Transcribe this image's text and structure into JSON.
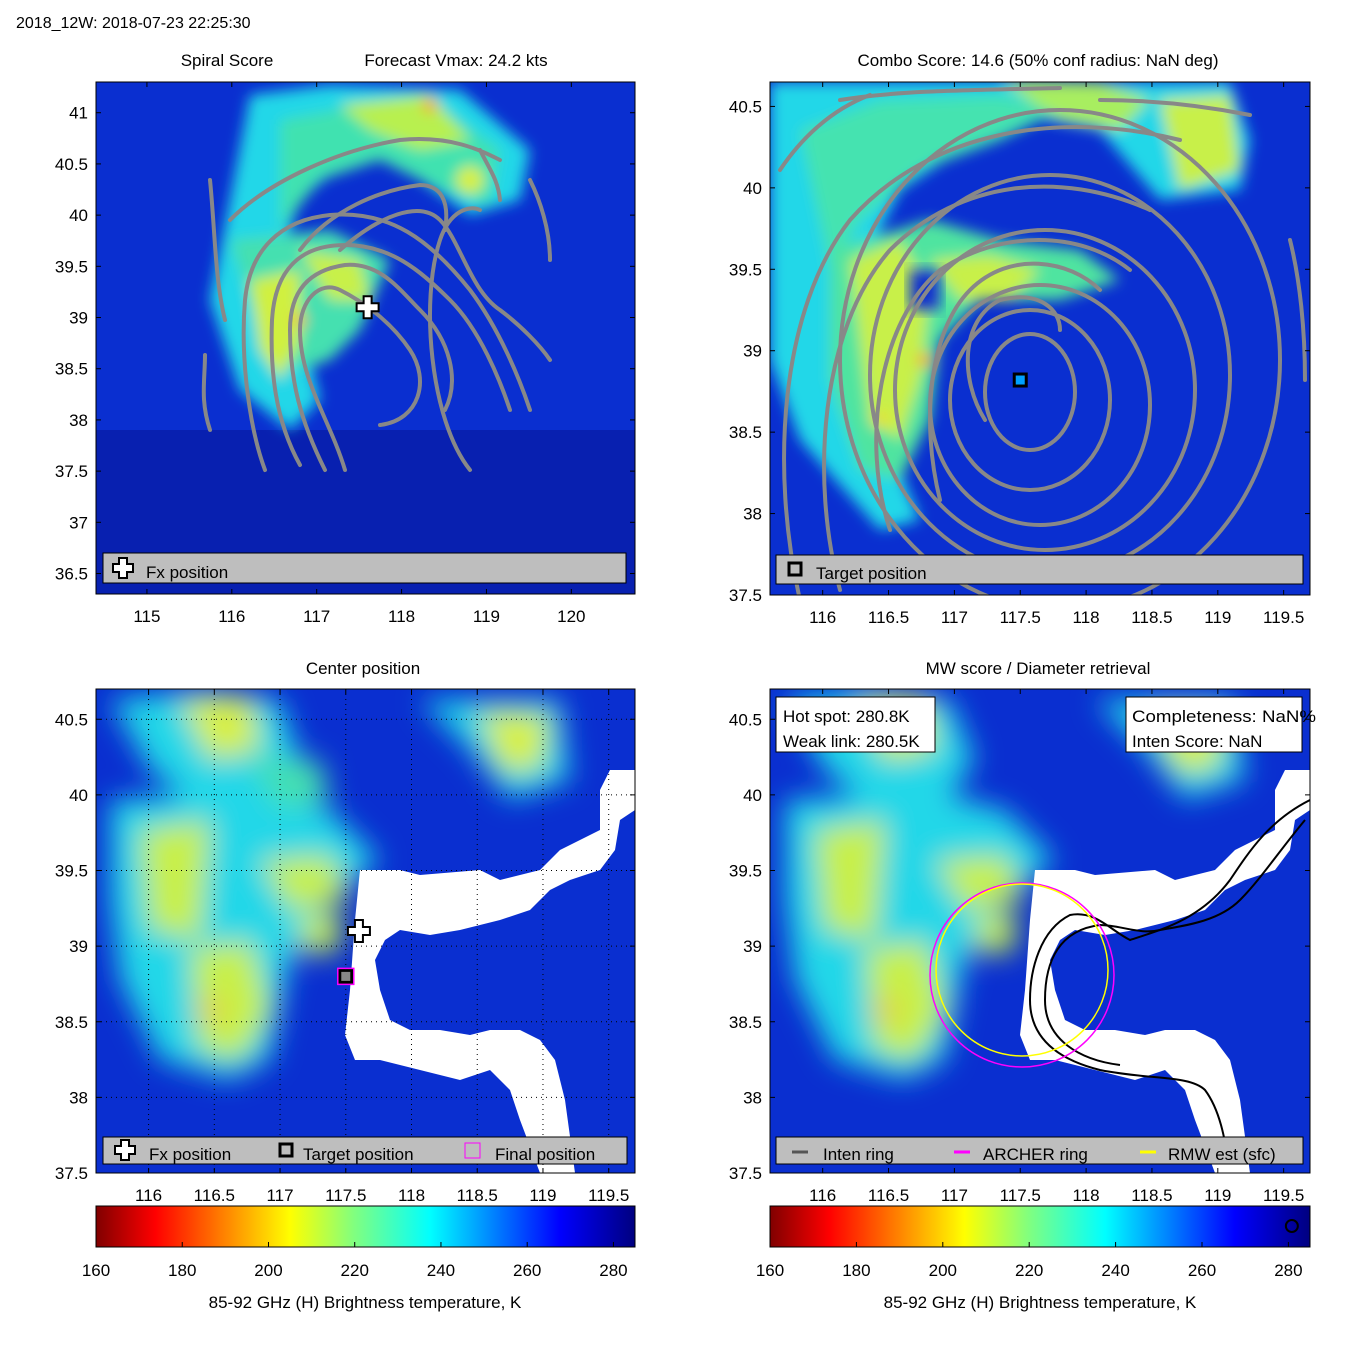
{
  "figure_title": "2018_12W: 2018-07-23 22:25:30",
  "colors": {
    "field_background": "#0a2fd0",
    "contour": "#888888",
    "legend_bg": "#bebebe",
    "archer_ring": "#ff00ff",
    "rmw_ring": "#ffff00",
    "inten_ring": "#000000"
  },
  "chart_data": [
    {
      "id": "spiral",
      "type": "heatmap",
      "title_left": "Spiral Score",
      "title_right": "Forecast Vmax: 24.2 kts",
      "xlim": [
        114.4,
        120.75
      ],
      "ylim": [
        36.3,
        41.3
      ],
      "xticks": [
        "115",
        "116",
        "117",
        "118",
        "119",
        "120"
      ],
      "yticks": [
        "36.5",
        "37",
        "37.5",
        "38",
        "38.5",
        "39",
        "39.5",
        "40",
        "40.5",
        "41"
      ],
      "markers": [
        {
          "kind": "fx-cross",
          "x": 117.6,
          "y": 39.1
        }
      ],
      "legend": [
        {
          "icon": "cross",
          "label": "Fx position"
        }
      ]
    },
    {
      "id": "combo",
      "type": "heatmap",
      "title": "Combo Score: 14.6  (50% conf radius: NaN deg)",
      "xlim": [
        115.6,
        119.7
      ],
      "ylim": [
        37.5,
        40.65
      ],
      "xticks": [
        "116",
        "116.5",
        "117",
        "117.5",
        "118",
        "118.5",
        "119",
        "119.5"
      ],
      "yticks": [
        "37.5",
        "38",
        "38.5",
        "39",
        "39.5",
        "40",
        "40.5"
      ],
      "markers": [
        {
          "kind": "target-square",
          "x": 117.5,
          "y": 38.82
        }
      ],
      "legend": [
        {
          "icon": "square",
          "label": "Target position"
        }
      ]
    },
    {
      "id": "center",
      "type": "heatmap",
      "title": "Center position",
      "xlim": [
        115.6,
        119.7
      ],
      "ylim": [
        37.5,
        40.7
      ],
      "xticks": [
        "116",
        "116.5",
        "117",
        "117.5",
        "118",
        "118.5",
        "119",
        "119.5"
      ],
      "yticks": [
        "37.5",
        "38",
        "38.5",
        "39",
        "39.5",
        "40",
        "40.5"
      ],
      "markers": [
        {
          "kind": "fx-cross",
          "x": 117.6,
          "y": 39.1
        },
        {
          "kind": "target-square",
          "x": 117.5,
          "y": 38.8
        },
        {
          "kind": "final-square",
          "x": 117.5,
          "y": 38.8
        }
      ],
      "legend": [
        {
          "icon": "cross",
          "label": "Fx position"
        },
        {
          "icon": "square",
          "label": "Target position"
        },
        {
          "icon": "final",
          "label": "Final position"
        }
      ],
      "colorbar": {
        "ticks": [
          "160",
          "180",
          "200",
          "220",
          "240",
          "260",
          "280"
        ],
        "range": [
          160,
          285
        ],
        "label": "85-92 GHz (H) Brightness temperature, K"
      }
    },
    {
      "id": "mw",
      "type": "heatmap",
      "title": "MW score / Diameter retrieval",
      "xlim": [
        115.6,
        119.7
      ],
      "ylim": [
        37.5,
        40.7
      ],
      "xticks": [
        "116",
        "116.5",
        "117",
        "117.5",
        "118",
        "118.5",
        "119",
        "119.5"
      ],
      "yticks": [
        "37.5",
        "38",
        "38.5",
        "39",
        "39.5",
        "40",
        "40.5"
      ],
      "info_left": [
        "Hot spot: 280.8K",
        "Weak link: 280.5K"
      ],
      "info_right": [
        "Completeness: NaN%",
        "Inten Score: NaN"
      ],
      "legend": [
        {
          "icon": "line-black",
          "label": "Inten ring"
        },
        {
          "icon": "line-magenta",
          "label": "ARCHER ring"
        },
        {
          "icon": "line-yellow",
          "label": "RMW est (sfc)"
        }
      ],
      "colorbar": {
        "ticks": [
          "160",
          "180",
          "200",
          "220",
          "240",
          "260",
          "280"
        ],
        "range": [
          160,
          285
        ],
        "label": "85-92 GHz (H) Brightness temperature, K",
        "marker_value": 280.8
      }
    }
  ]
}
